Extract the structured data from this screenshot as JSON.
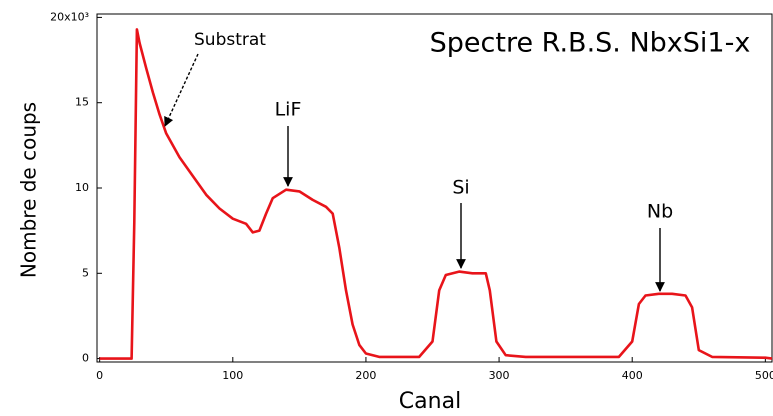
{
  "chart_data": {
    "type": "line",
    "title": "Spectre R.B.S. NbxSi1-x",
    "x_label": "Canal",
    "y_label": "Nombre de coups",
    "annotations": [
      "Substrat",
      "LiF",
      "Si",
      "Nb"
    ],
    "color": "#e8141a",
    "x": [
      0,
      20,
      24,
      26,
      28,
      30,
      35,
      40,
      45,
      50,
      60,
      70,
      80,
      90,
      100,
      110,
      115,
      120,
      125,
      130,
      140,
      150,
      160,
      170,
      175,
      180,
      185,
      190,
      195,
      200,
      210,
      240,
      250,
      255,
      260,
      270,
      280,
      290,
      293,
      298,
      305,
      320,
      390,
      400,
      405,
      410,
      420,
      430,
      440,
      445,
      450,
      460,
      500,
      505
    ],
    "values": [
      0,
      0,
      0,
      8,
      19.3,
      18.5,
      17,
      15.6,
      14.3,
      13.2,
      11.8,
      10.7,
      9.6,
      8.8,
      8.2,
      7.9,
      7.4,
      7.5,
      8.5,
      9.4,
      9.9,
      9.8,
      9.3,
      8.9,
      8.5,
      6.5,
      4,
      2,
      0.8,
      0.3,
      0.1,
      0.1,
      1,
      4,
      4.9,
      5.1,
      5,
      5,
      4,
      1,
      0.2,
      0.1,
      0.1,
      1,
      3.2,
      3.7,
      3.8,
      3.8,
      3.7,
      3,
      0.5,
      0.1,
      0.05,
      0
    ],
    "xlim": [
      -2,
      505
    ],
    "ylim": [
      -0.2,
      20.2
    ],
    "xticks": [
      0,
      100,
      200,
      300,
      400,
      500
    ],
    "yticks": [
      0,
      5,
      10,
      15,
      {
        "value": 20,
        "label": "20x10³"
      }
    ]
  }
}
